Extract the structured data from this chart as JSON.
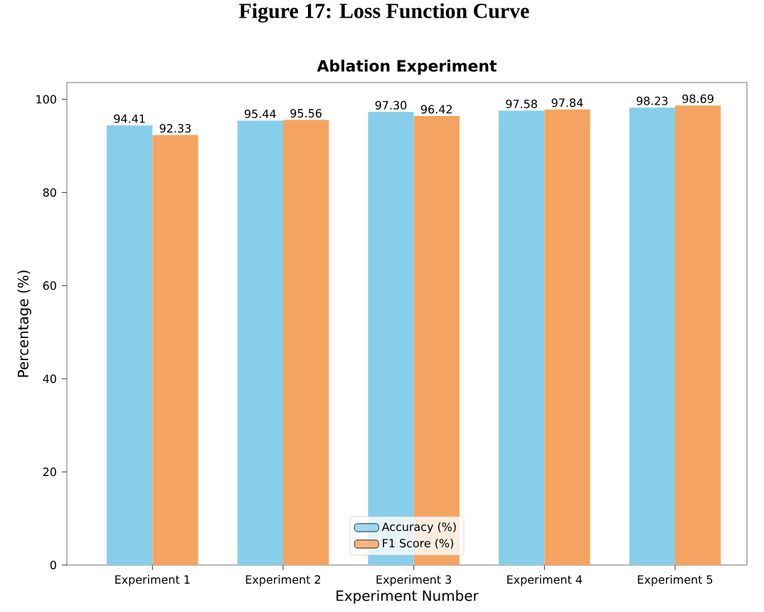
{
  "chart_data": {
    "type": "bar",
    "title": "Ablation Experiment",
    "xlabel": "Experiment Number",
    "ylabel": "Percentage (%)",
    "annotations": [
      "Figure 17: Loss Function Curve"
    ],
    "categories": [
      "Experiment 1",
      "Experiment 2",
      "Experiment 3",
      "Experiment 4",
      "Experiment 5"
    ],
    "series": [
      {
        "name": "Accuracy (%)",
        "color": "#87ceeb",
        "values": [
          94.41,
          95.44,
          97.3,
          97.58,
          98.23
        ],
        "value_labels": [
          "94.41",
          "95.44",
          "97.30",
          "97.58",
          "98.23"
        ]
      },
      {
        "name": "F1 Score (%)",
        "color": "#f4a460",
        "values": [
          92.33,
          95.56,
          96.42,
          97.84,
          98.69
        ],
        "value_labels": [
          "92.33",
          "95.56",
          "96.42",
          "97.84",
          "98.69"
        ]
      }
    ],
    "ylim": [
      0,
      103.6
    ],
    "yticks": [
      0,
      20,
      40,
      60,
      80,
      100
    ],
    "legend": "bottom",
    "grid": false
  }
}
